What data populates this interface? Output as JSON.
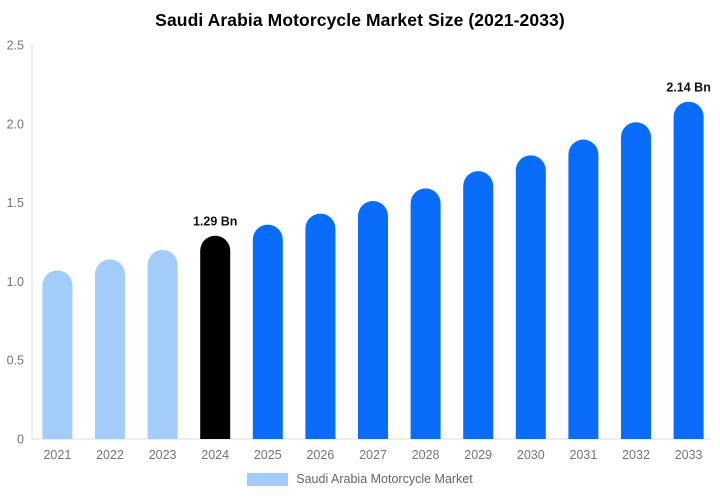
{
  "title": "Saudi Arabia Motorcycle Market Size (2021-2033)",
  "legend": {
    "label": "Saudi Arabia Motorcycle Market",
    "swatch_color": "#A2CDFA"
  },
  "colors": {
    "historical_bar": "#A2CDFA",
    "base_year_bar": "#000000",
    "forecast_bar": "#0A6CFA",
    "axis_line": "#DDDDDD",
    "tick_label": "#757575",
    "value_label": "#111111",
    "legend_text": "#666666",
    "title_text": "#000000"
  },
  "chart_data": {
    "type": "bar",
    "title": "Saudi Arabia Motorcycle Market Size (2021-2033)",
    "categories": [
      "2021",
      "2022",
      "2023",
      "2024",
      "2025",
      "2026",
      "2027",
      "2028",
      "2029",
      "2030",
      "2031",
      "2032",
      "2033"
    ],
    "values": [
      1.07,
      1.14,
      1.2,
      1.29,
      1.36,
      1.43,
      1.51,
      1.59,
      1.7,
      1.8,
      1.9,
      2.01,
      2.14
    ],
    "bar_colors": [
      "#A2CDFA",
      "#A2CDFA",
      "#A2CDFA",
      "#000000",
      "#0A6CFA",
      "#0A6CFA",
      "#0A6CFA",
      "#0A6CFA",
      "#0A6CFA",
      "#0A6CFA",
      "#0A6CFA",
      "#0A6CFA",
      "#0A6CFA"
    ],
    "data_labels": [
      "",
      "",
      "",
      "1.29 Bn",
      "",
      "",
      "",
      "",
      "",
      "",
      "",
      "",
      "2.14 Bn"
    ],
    "xlabel": "",
    "ylabel": "",
    "unit": "Bn",
    "ylim": [
      0,
      2.5
    ],
    "ytick_values": [
      0,
      0.5,
      1.0,
      1.5,
      2.0,
      2.5
    ],
    "ytick_labels": [
      "0",
      "0.5",
      "1.0",
      "1.5",
      "2.0",
      "2.5"
    ],
    "grid": false,
    "legend_position": "bottom",
    "legend_entries": [
      "Saudi Arabia Motorcycle Market"
    ]
  }
}
